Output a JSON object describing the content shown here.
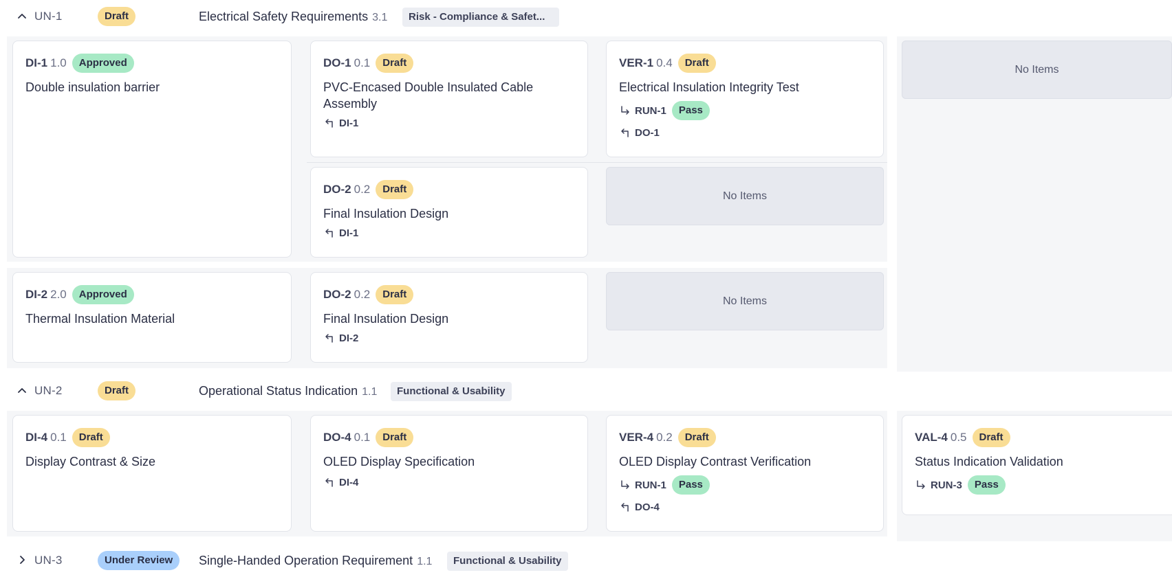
{
  "groups": [
    {
      "id": "UN-1",
      "status": "Draft",
      "title": "Electrical Safety Requirements",
      "version": "3.1",
      "category": "Risk - Compliance & Safet...",
      "expanded": true
    },
    {
      "id": "UN-2",
      "status": "Draft",
      "title": "Operational Status Indication",
      "version": "1.1",
      "category": "Functional & Usability",
      "expanded": true
    },
    {
      "id": "UN-3",
      "status": "Under Review",
      "title": "Single-Handed Operation Requirement",
      "version": "1.1",
      "category": "Functional & Usability",
      "expanded": false
    }
  ],
  "cards": {
    "di1": {
      "id": "DI-1",
      "version": "1.0",
      "status": "Approved",
      "title": "Double insulation barrier"
    },
    "do1": {
      "id": "DO-1",
      "version": "0.1",
      "status": "Draft",
      "title": "PVC-Encased Double Insulated Cable Assembly",
      "link": "DI-1"
    },
    "ver1": {
      "id": "VER-1",
      "version": "0.4",
      "status": "Draft",
      "title": "Electrical Insulation Integrity Test",
      "run": "RUN-1",
      "run_status": "Pass",
      "link": "DO-1"
    },
    "do2a": {
      "id": "DO-2",
      "version": "0.2",
      "status": "Draft",
      "title": "Final Insulation Design",
      "link": "DI-1"
    },
    "di2": {
      "id": "DI-2",
      "version": "2.0",
      "status": "Approved",
      "title": "Thermal Insulation Material"
    },
    "do2b": {
      "id": "DO-2",
      "version": "0.2",
      "status": "Draft",
      "title": "Final Insulation Design",
      "link": "DI-2"
    },
    "di4": {
      "id": "DI-4",
      "version": "0.1",
      "status": "Draft",
      "title": "Display Contrast & Size"
    },
    "do4": {
      "id": "DO-4",
      "version": "0.1",
      "status": "Draft",
      "title": "OLED Display Specification",
      "link": "DI-4"
    },
    "ver4": {
      "id": "VER-4",
      "version": "0.2",
      "status": "Draft",
      "title": "OLED Display Contrast Verification",
      "run": "RUN-1",
      "run_status": "Pass",
      "link": "DO-4"
    },
    "val4": {
      "id": "VAL-4",
      "version": "0.5",
      "status": "Draft",
      "title": "Status Indication Validation",
      "run": "RUN-3",
      "run_status": "Pass"
    }
  },
  "empty_label": "No Items",
  "colors": {
    "draft": "#f9dd95",
    "approved": "#a7e9c5",
    "under_review": "#a9cffb",
    "pass": "#a7e9c5"
  },
  "icons": {
    "collapse": "chevron-up-icon",
    "expand": "chevron-right-icon",
    "trace_back": "arrow-return-left-icon",
    "run_link": "arrow-down-right-icon"
  }
}
